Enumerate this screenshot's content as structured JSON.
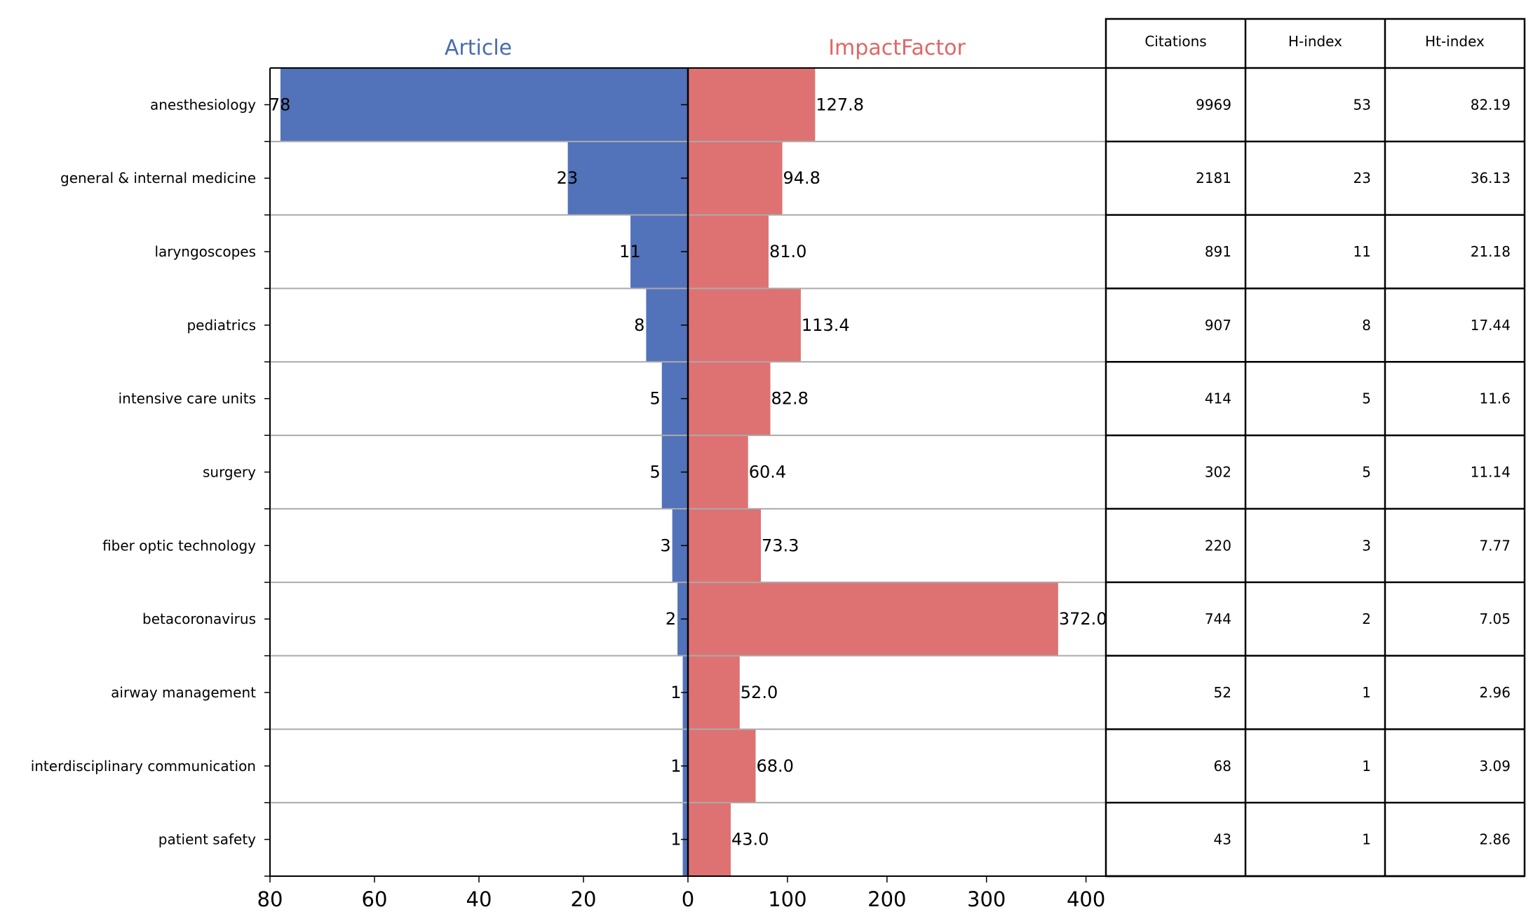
{
  "chart_data": {
    "type": "bar",
    "layout": "back-to-back",
    "categories": [
      "anesthesiology",
      "general & internal medicine",
      "laryngoscopes",
      "pediatrics",
      "intensive care units",
      "surgery",
      "fiber optic technology",
      "betacoronavirus",
      "airway management",
      "interdisciplinary communication",
      "patient safety"
    ],
    "series": [
      {
        "name": "Article",
        "color": "#5272b9",
        "values": [
          78,
          23,
          11,
          8,
          5,
          5,
          3,
          2,
          1,
          1,
          1
        ],
        "labels": [
          "78",
          "23",
          "11",
          "8",
          "5",
          "5",
          "3",
          "2",
          "1",
          "1",
          "1"
        ],
        "xlim": [
          0,
          80
        ],
        "ticks": [
          80,
          60,
          40,
          20,
          0
        ]
      },
      {
        "name": "ImpactFactor",
        "color": "#de7272",
        "values": [
          127.8,
          94.8,
          81.0,
          113.4,
          82.8,
          60.4,
          73.3,
          372.0,
          52.0,
          68.0,
          43.0
        ],
        "labels": [
          "127.8",
          "94.8",
          "81.0",
          "113.4",
          "82.8",
          "60.4",
          "73.3",
          "372.0",
          "52.0",
          "68.0",
          "43.0"
        ],
        "xlim": [
          0,
          420
        ],
        "ticks": [
          0,
          100,
          200,
          300,
          400
        ]
      }
    ],
    "table": {
      "columns": [
        "Citations",
        "H-index",
        "Ht-index"
      ],
      "rows": [
        [
          "9969",
          "53",
          "82.19"
        ],
        [
          "2181",
          "23",
          "36.13"
        ],
        [
          "891",
          "11",
          "21.18"
        ],
        [
          "907",
          "8",
          "17.44"
        ],
        [
          "414",
          "5",
          "11.6"
        ],
        [
          "302",
          "5",
          "11.14"
        ],
        [
          "220",
          "3",
          "7.77"
        ],
        [
          "744",
          "2",
          "7.05"
        ],
        [
          "52",
          "1",
          "2.96"
        ],
        [
          "68",
          "1",
          "3.09"
        ],
        [
          "43",
          "1",
          "2.86"
        ]
      ]
    },
    "grid": "horizontal row separators"
  }
}
